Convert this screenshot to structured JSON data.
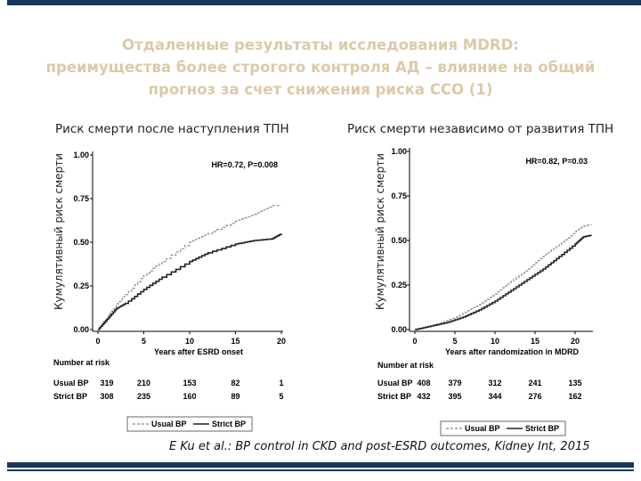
{
  "title": {
    "line1": "Отдаленные результаты исследования MDRD:",
    "line2": "преимущества более строгого контроля АД – влияние на общий",
    "line3": "прогноз за счет снижения риска ССО (1)"
  },
  "citation": "E Ku et al.: BP control in CKD and post-ESRD outcomes, Kidney Int, 2015",
  "colors": {
    "bar": "#17375e",
    "title": "#ddc9a8",
    "usual": "#888888",
    "strict": "#222222"
  },
  "chart_data": [
    {
      "type": "line",
      "title": "Риск смерти после наступления ТПН",
      "ylabel": "Кумулятивный риск смерти",
      "xlabel": "Years after ESRD onset",
      "annotation": "HR=0.72, P=0.008",
      "ylim": [
        0,
        1
      ],
      "xlim": [
        0,
        20
      ],
      "yticks": [
        "0.00",
        "0.25",
        "0.50",
        "0.75",
        "1.00"
      ],
      "xticks": [
        "0",
        "5",
        "10",
        "15",
        "20"
      ],
      "series": [
        {
          "name": "Usual BP",
          "style": "dashed",
          "x": [
            0,
            1,
            2,
            3,
            5,
            7,
            10,
            12,
            15,
            17,
            19,
            20
          ],
          "y": [
            0,
            0.07,
            0.14,
            0.2,
            0.31,
            0.39,
            0.5,
            0.55,
            0.62,
            0.66,
            0.71,
            0.71
          ]
        },
        {
          "name": "Strict BP",
          "style": "solid",
          "x": [
            0,
            1,
            2,
            3,
            5,
            7,
            10,
            12,
            15,
            17,
            19,
            20
          ],
          "y": [
            0,
            0.06,
            0.12,
            0.15,
            0.23,
            0.3,
            0.39,
            0.44,
            0.49,
            0.51,
            0.52,
            0.55
          ]
        }
      ],
      "risk_table": {
        "header": "Number at risk",
        "rows": [
          {
            "label": "Usual BP",
            "values": [
              "319",
              "210",
              "153",
              "82",
              "1"
            ]
          },
          {
            "label": "Strict BP",
            "values": [
              "308",
              "235",
              "160",
              "89",
              "5"
            ]
          }
        ]
      },
      "legend": [
        "Usual BP",
        "Strict BP"
      ]
    },
    {
      "type": "line",
      "title": "Риск смерти независимо от развития ТПН",
      "ylabel": "Кумулятивный риск смерти",
      "xlabel": "Years after randomization in MDRD",
      "annotation": "HR=0.82, P=0.03",
      "ylim": [
        0,
        1
      ],
      "xlim": [
        0,
        22
      ],
      "yticks": [
        "0.00",
        "0.25",
        "0.50",
        "0.75",
        "1.00"
      ],
      "xticks": [
        "0",
        "5",
        "10",
        "15",
        "20"
      ],
      "series": [
        {
          "name": "Usual BP",
          "style": "dashed",
          "x": [
            0,
            2,
            4,
            6,
            8,
            10,
            12,
            14,
            16,
            18,
            20,
            21,
            22
          ],
          "y": [
            0,
            0.02,
            0.05,
            0.09,
            0.14,
            0.2,
            0.27,
            0.34,
            0.41,
            0.48,
            0.55,
            0.58,
            0.59
          ]
        },
        {
          "name": "Strict BP",
          "style": "solid",
          "x": [
            0,
            2,
            4,
            6,
            8,
            10,
            12,
            14,
            16,
            18,
            20,
            21,
            22
          ],
          "y": [
            0,
            0.02,
            0.04,
            0.07,
            0.11,
            0.16,
            0.22,
            0.28,
            0.34,
            0.41,
            0.48,
            0.52,
            0.53
          ]
        }
      ],
      "risk_table": {
        "header": "Number at risk",
        "rows": [
          {
            "label": "Usual BP",
            "values": [
              "408",
              "379",
              "312",
              "241",
              "135"
            ]
          },
          {
            "label": "Strict BP",
            "values": [
              "432",
              "395",
              "344",
              "276",
              "162"
            ]
          }
        ]
      },
      "legend": [
        "Usual BP",
        "Strict BP"
      ]
    }
  ]
}
